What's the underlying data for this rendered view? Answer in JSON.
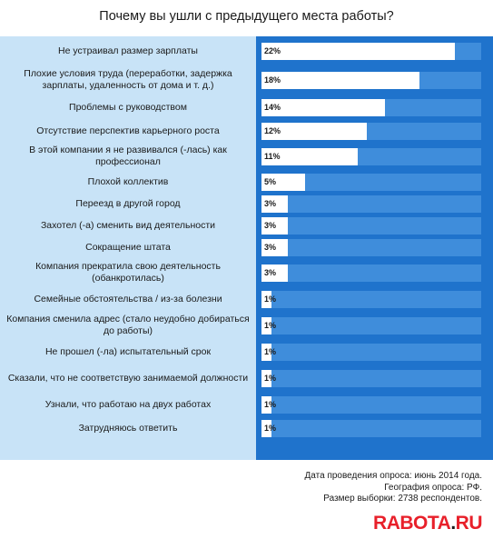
{
  "chart_data": {
    "type": "bar",
    "title": "Почему вы ушли с предыдущего места работы?",
    "orientation": "horizontal",
    "categories": [
      "Не устраивал размер зарплаты",
      "Плохие условия труда (переработки, задержка зарплаты, удаленность от дома и т. д.)",
      "Проблемы с руководством",
      "Отсутствие перспектив карьерного роста",
      "В этой компании я не развивался (-лась) как профессионал",
      "Плохой коллектив",
      "Переезд в другой город",
      "Захотел (-а) сменить вид деятельности",
      "Сокращение штата",
      "Компания прекратила свою деятельность (обанкротилась)",
      "Семейные обстоятельства / из-за болезни",
      "Компания сменила адрес (стало неудобно добираться до работы)",
      "Не прошел (-ла) испытательный срок",
      "Сказали, что не соответствую занимаемой должности",
      "Узнали, что работаю на двух работах",
      "Затрудняюсь ответить"
    ],
    "values": [
      22,
      18,
      14,
      12,
      11,
      5,
      3,
      3,
      3,
      3,
      1,
      1,
      1,
      1,
      1,
      1
    ],
    "value_labels": [
      "22%",
      "18%",
      "14%",
      "12%",
      "11%",
      "5%",
      "3%",
      "3%",
      "3%",
      "3%",
      "1%",
      "1%",
      "1%",
      "1%",
      "1%",
      "1%"
    ],
    "xlim": [
      0,
      25
    ],
    "grid": false,
    "colors": {
      "bar": "#ffffff",
      "track": "#3f8ddb",
      "background_right": "#1f73cc",
      "background_left": "#c8e3f7"
    }
  },
  "footer": {
    "line1": "Дата проведения опроса: июнь 2014 года.",
    "line2": "География опроса: РФ.",
    "line3": "Размер выборки: 2738 респондентов."
  },
  "logo": {
    "name": "RABOTA",
    "dot": ".",
    "tld": "RU",
    "color": "#e8202a"
  }
}
